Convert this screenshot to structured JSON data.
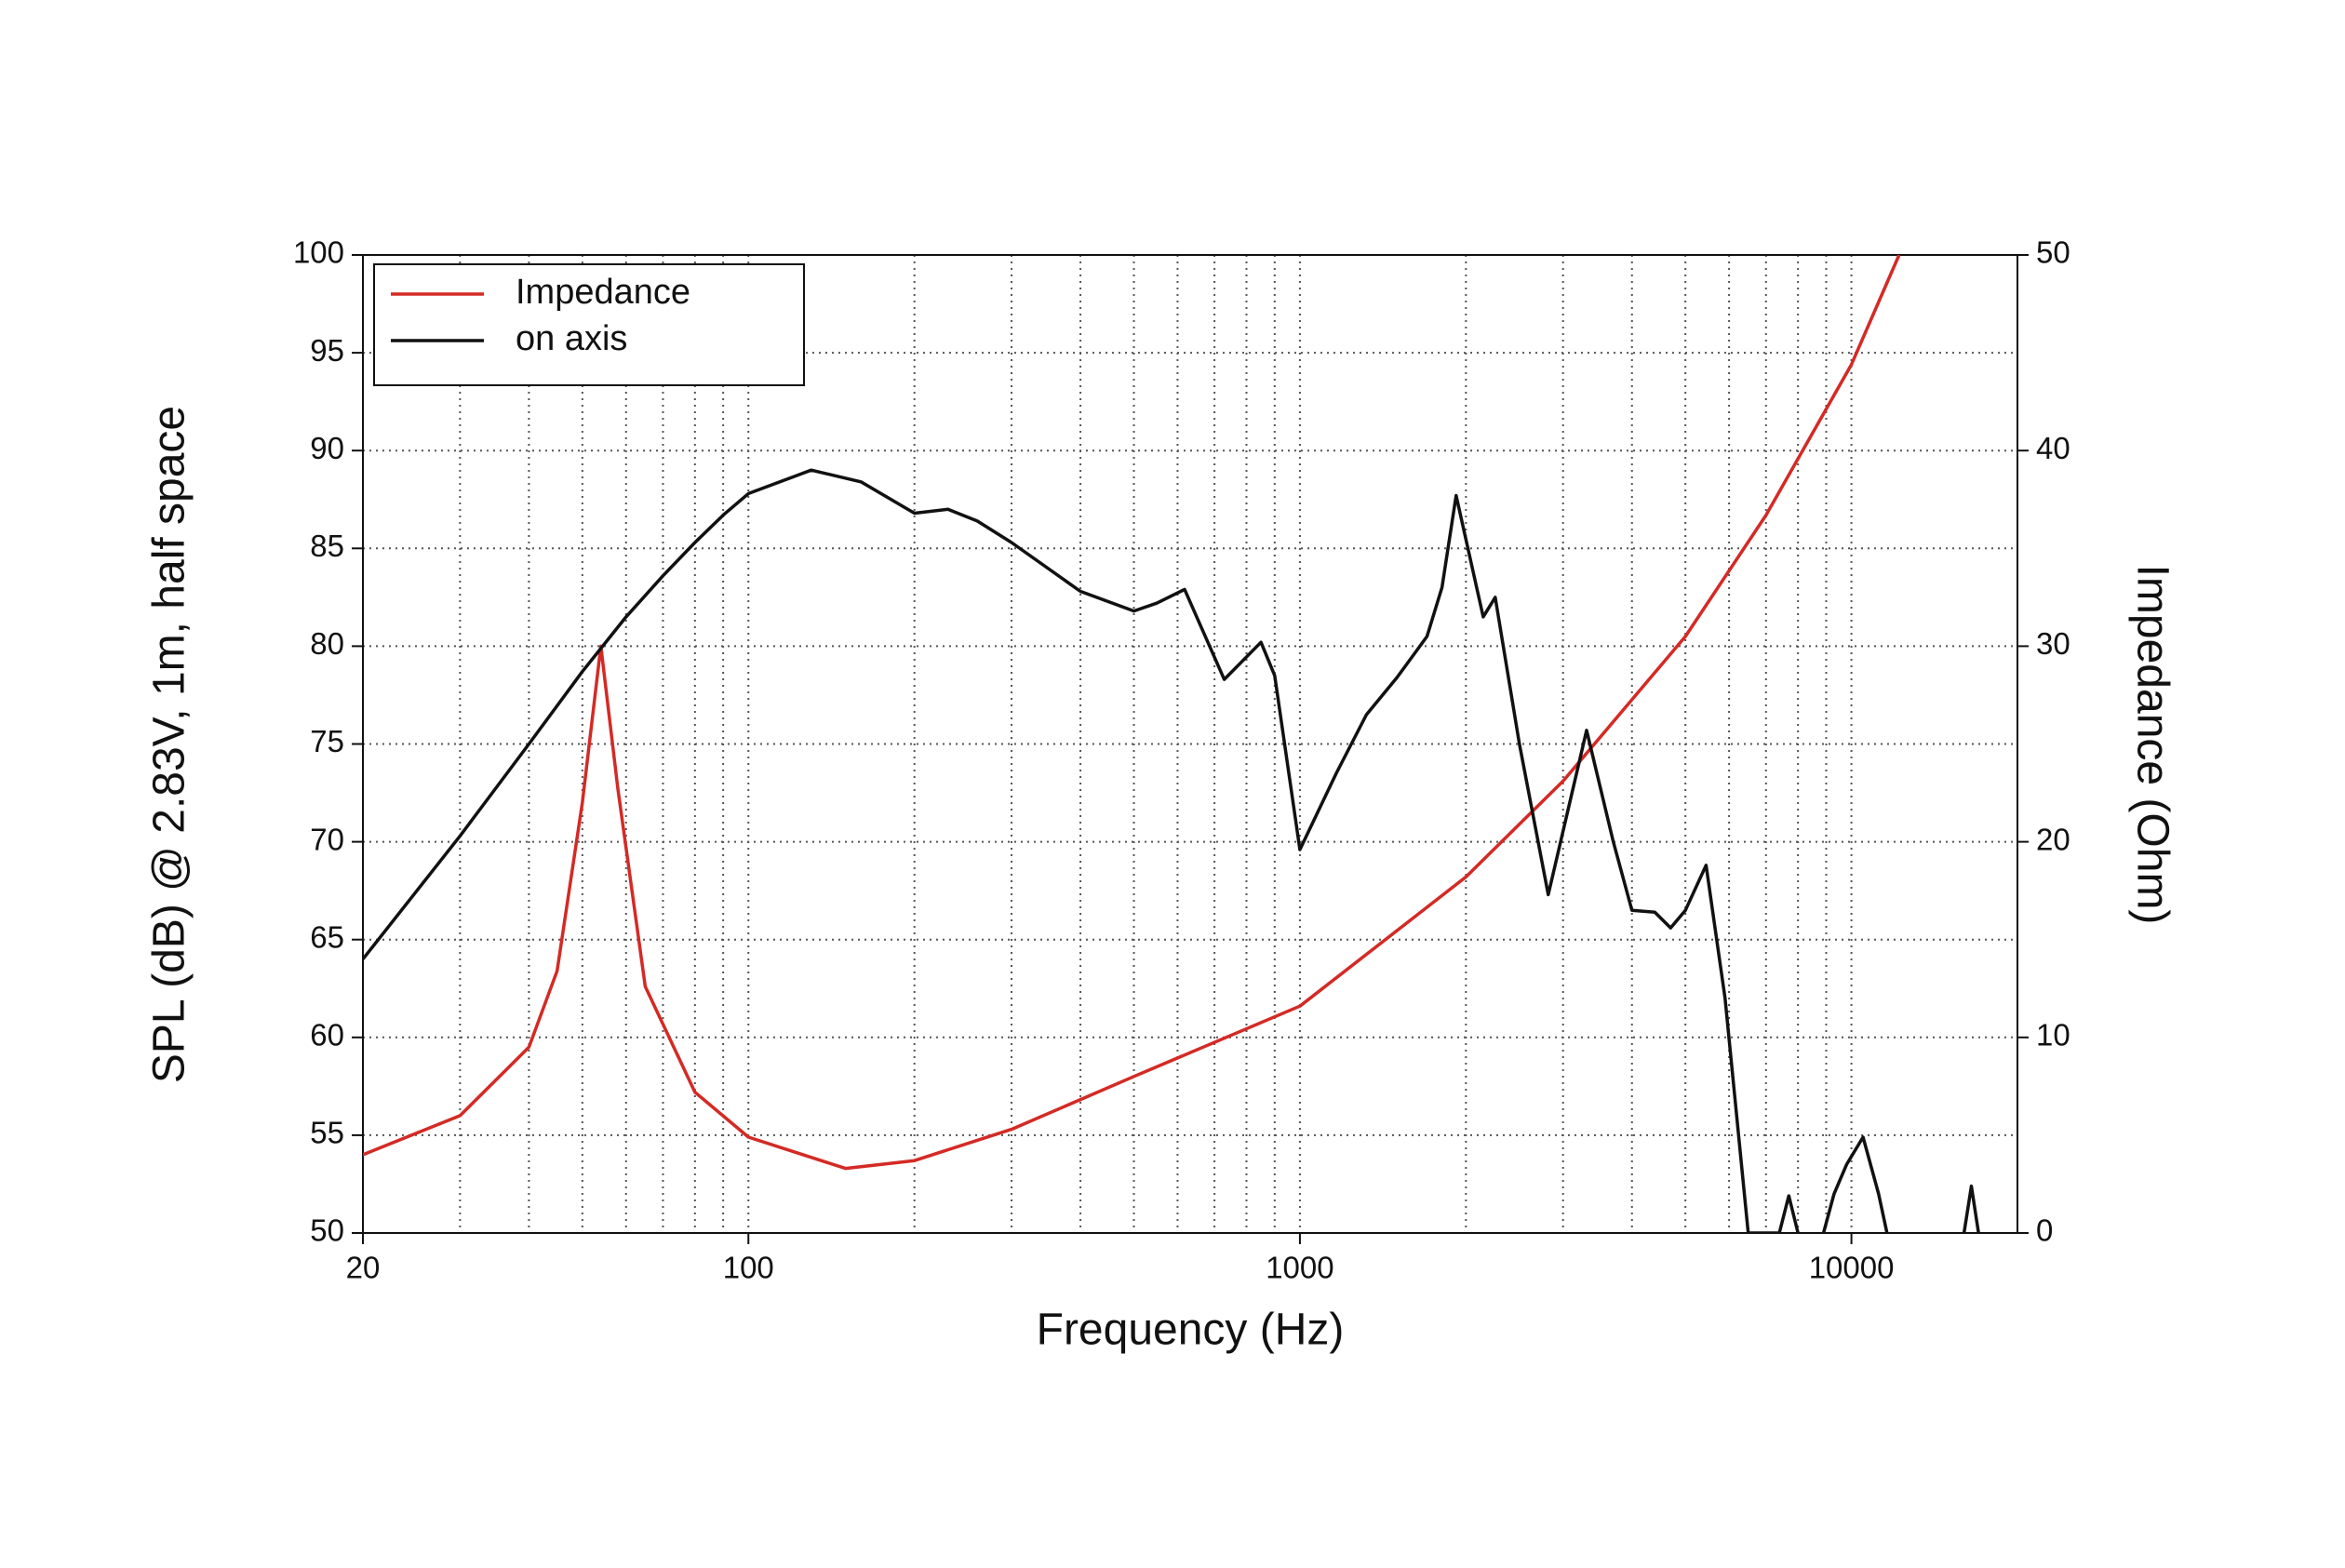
{
  "chart_data": {
    "type": "line",
    "xlabel": "Frequency (Hz)",
    "ylabel": "SPL (dB) @ 2.83V, 1m, half space",
    "y2label": "Impedance (Ohm)",
    "xscale": "log",
    "xlim": [
      20,
      20000
    ],
    "xticks": [
      20,
      100,
      1000,
      10000
    ],
    "ylim": [
      50,
      100
    ],
    "yticks": [
      50,
      55,
      60,
      65,
      70,
      75,
      80,
      85,
      90,
      95,
      100
    ],
    "y2lim": [
      0,
      50
    ],
    "y2ticks": [
      0,
      10,
      20,
      30,
      40,
      50
    ],
    "grid": true,
    "minor_grid": true,
    "legend": "upper left",
    "series": [
      {
        "name": "Impedance",
        "color": "#d42a25",
        "axis": "y2",
        "x": [
          20,
          30,
          40,
          45,
          50,
          54,
          58,
          65,
          80,
          100,
          150,
          200,
          300,
          500,
          1000,
          2000,
          3000,
          5000,
          7000,
          10000,
          12200
        ],
        "values": [
          4.0,
          6.0,
          9.5,
          13.4,
          22,
          30,
          22.7,
          12.6,
          7.2,
          4.9,
          3.3,
          3.7,
          5.3,
          8.0,
          11.6,
          18.2,
          23.1,
          30.5,
          36.7,
          44.4,
          50
        ]
      },
      {
        "name": "on axis",
        "color": "#111111",
        "axis": "y",
        "x": [
          20,
          30,
          40,
          50,
          60,
          70,
          80,
          90,
          100,
          130,
          160,
          200,
          230,
          260,
          300,
          400,
          500,
          550,
          618,
          650,
          729,
          850,
          900,
          1000,
          1164,
          1320,
          1500,
          1700,
          1810,
          1920,
          2150,
          2260,
          2500,
          2820,
          3310,
          3700,
          4000,
          4400,
          4700,
          5000,
          5450,
          5900,
          6500,
          7400,
          7700,
          8000,
          null,
          8900,
          9300,
          9800,
          10500,
          11200,
          11600,
          null,
          16000,
          16500,
          17000
        ],
        "values": [
          64.0,
          70.3,
          75.0,
          78.7,
          81.5,
          83.6,
          85.3,
          86.7,
          87.8,
          89.0,
          88.4,
          86.8,
          87.0,
          86.4,
          85.3,
          82.8,
          81.8,
          82.2,
          82.9,
          81.5,
          78.3,
          80.2,
          78.5,
          69.6,
          73.5,
          76.5,
          78.4,
          80.5,
          83.0,
          87.7,
          81.5,
          82.5,
          75.0,
          67.3,
          75.7,
          70.0,
          66.5,
          66.4,
          65.6,
          66.5,
          68.8,
          62.0,
          50,
          50,
          51.9,
          50,
          null,
          50,
          52,
          53.5,
          54.9,
          52,
          50,
          null,
          50,
          52.4,
          50
        ]
      }
    ]
  }
}
